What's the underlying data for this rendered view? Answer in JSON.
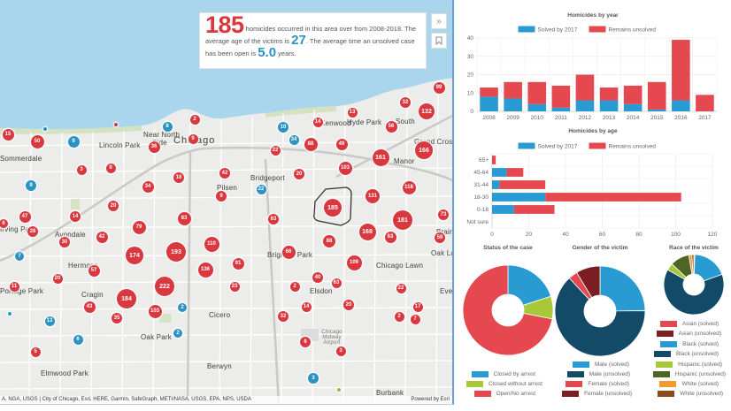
{
  "colors": {
    "red": "#e5484e",
    "blue": "#2a9ad3",
    "navy": "#124a68",
    "green": "#a8c83a",
    "darkred": "#7a1e22",
    "darkgreen": "#4f6526",
    "orange": "#f39a2c",
    "brown": "#8a4b1f"
  },
  "map": {
    "buttons": {
      "collapse_icon": "double-chevron-right-icon",
      "collapse_glyph": "»",
      "bookmark_icon": "bookmark-icon",
      "bookmark_glyph": "⌑"
    },
    "info": {
      "count": "185",
      "text1": " homicides occurred in this area over from 2008-2018. The average age of the victims is ",
      "age": "27",
      "text2": ". The average time an unsolved case has been open is ",
      "years": "5.0",
      "text3": " years."
    },
    "places": [
      {
        "name": "Lincoln Park"
      },
      {
        "name": "Near North"
      },
      {
        "name": "Side"
      },
      {
        "name": "Chicago"
      },
      {
        "name": "Avondale"
      },
      {
        "name": "Hermosa"
      },
      {
        "name": "Cragin"
      },
      {
        "name": "Cicero"
      },
      {
        "name": "Oak Park"
      },
      {
        "name": "Berwyn"
      },
      {
        "name": "Elmwood Park"
      },
      {
        "name": "Pilsen"
      },
      {
        "name": "Bridgeport"
      },
      {
        "name": "Brighton Park"
      },
      {
        "name": "Elsdon"
      },
      {
        "name": "Chicago Lawn"
      },
      {
        "name": "Oak Lawn"
      },
      {
        "name": "Burbank"
      },
      {
        "name": "Kenwood"
      },
      {
        "name": "Hyde Park"
      },
      {
        "name": "South"
      },
      {
        "name": "Grand Crossing"
      },
      {
        "name": "Manor"
      },
      {
        "name": "Brainerd"
      },
      {
        "name": "Evergreen"
      },
      {
        "name": "Sommerdale"
      },
      {
        "name": "Portage Park"
      },
      {
        "name": "Irving Park"
      },
      {
        "name": "Chicago Midway Airport"
      }
    ],
    "clusters": [
      {
        "label": "15",
        "type": "red"
      },
      {
        "label": "50",
        "type": "red"
      },
      {
        "label": "9",
        "type": "blue"
      },
      {
        "label": "3",
        "type": "red"
      },
      {
        "label": "9",
        "type": "red"
      },
      {
        "label": "36",
        "type": "red"
      },
      {
        "label": "8",
        "type": "blue"
      },
      {
        "label": "2",
        "type": "red"
      },
      {
        "label": "9",
        "type": "red"
      },
      {
        "label": "34",
        "type": "blue"
      },
      {
        "label": "9",
        "type": "blue"
      },
      {
        "label": "47",
        "type": "red"
      },
      {
        "label": "6",
        "type": "red"
      },
      {
        "label": "14",
        "type": "red"
      },
      {
        "label": "20",
        "type": "red"
      },
      {
        "label": "34",
        "type": "red"
      },
      {
        "label": "18",
        "type": "red"
      },
      {
        "label": "42",
        "type": "red"
      },
      {
        "label": "9",
        "type": "red"
      },
      {
        "label": "30",
        "type": "red"
      },
      {
        "label": "42",
        "type": "red"
      },
      {
        "label": "79",
        "type": "red"
      },
      {
        "label": "83",
        "type": "red"
      },
      {
        "label": "110",
        "type": "red"
      },
      {
        "label": "7",
        "type": "blue"
      },
      {
        "label": "174",
        "type": "red"
      },
      {
        "label": "193",
        "type": "red"
      },
      {
        "label": "136",
        "type": "red"
      },
      {
        "label": "57",
        "type": "red"
      },
      {
        "label": "20",
        "type": "red"
      },
      {
        "label": "11",
        "type": "red"
      },
      {
        "label": "222",
        "type": "red"
      },
      {
        "label": "184",
        "type": "red"
      },
      {
        "label": "103",
        "type": "red"
      },
      {
        "label": "43",
        "type": "red"
      },
      {
        "label": "35",
        "type": "red"
      },
      {
        "label": "2",
        "type": "blue"
      },
      {
        "label": "13",
        "type": "blue"
      },
      {
        "label": "6",
        "type": "blue"
      },
      {
        "label": "2",
        "type": "blue"
      },
      {
        "label": "5",
        "type": "red"
      },
      {
        "label": "28",
        "type": "red"
      },
      {
        "label": "91",
        "type": "red"
      },
      {
        "label": "23",
        "type": "red"
      },
      {
        "label": "22",
        "type": "blue"
      },
      {
        "label": "10",
        "type": "blue"
      },
      {
        "label": "22",
        "type": "red"
      },
      {
        "label": "88",
        "type": "red"
      },
      {
        "label": "49",
        "type": "red"
      },
      {
        "label": "14",
        "type": "red"
      },
      {
        "label": "13",
        "type": "red"
      },
      {
        "label": "103",
        "type": "red"
      },
      {
        "label": "20",
        "type": "red"
      },
      {
        "label": "161",
        "type": "red"
      },
      {
        "label": "56",
        "type": "red"
      },
      {
        "label": "32",
        "type": "red"
      },
      {
        "label": "132",
        "type": "red"
      },
      {
        "label": "99",
        "type": "red"
      },
      {
        "label": "166",
        "type": "red"
      },
      {
        "label": "118",
        "type": "red"
      },
      {
        "label": "185",
        "type": "red"
      },
      {
        "label": "131",
        "type": "red"
      },
      {
        "label": "63",
        "type": "red"
      },
      {
        "label": "181",
        "type": "red"
      },
      {
        "label": "168",
        "type": "red"
      },
      {
        "label": "73",
        "type": "red"
      },
      {
        "label": "59",
        "type": "red"
      },
      {
        "label": "88",
        "type": "red"
      },
      {
        "label": "66",
        "type": "red"
      },
      {
        "label": "63",
        "type": "red"
      },
      {
        "label": "109",
        "type": "red"
      },
      {
        "label": "40",
        "type": "red"
      },
      {
        "label": "2",
        "type": "red"
      },
      {
        "label": "17",
        "type": "red"
      },
      {
        "label": "22",
        "type": "red"
      },
      {
        "label": "14",
        "type": "red"
      },
      {
        "label": "20",
        "type": "red"
      },
      {
        "label": "32",
        "type": "red"
      },
      {
        "label": "2",
        "type": "red"
      },
      {
        "label": "7",
        "type": "red"
      },
      {
        "label": "6",
        "type": "red"
      },
      {
        "label": "3",
        "type": "red"
      },
      {
        "label": "3",
        "type": "blue"
      },
      {
        "label": "63",
        "type": "red"
      }
    ],
    "attribution": "A, NGA, USGS | City of Chicago, Esri, HERE, Garmin, SafeGraph, METI/NASA, USGS, EPA, NPS, USDA",
    "powered_by": "Powered by Esri"
  },
  "chart_data": [
    {
      "type": "bar",
      "stacked": true,
      "orientation": "vertical",
      "title": "Homicides by year",
      "legend_position": "top",
      "categories": [
        "2008",
        "2009",
        "2010",
        "2011",
        "2012",
        "2013",
        "2014",
        "2015",
        "2016",
        "2017"
      ],
      "series": [
        {
          "name": "Solved by 2017",
          "color": "#2a9ad3",
          "values": [
            8,
            7,
            4,
            2,
            6,
            6,
            4,
            1,
            6,
            0
          ]
        },
        {
          "name": "Remains unsolved",
          "color": "#e5484e",
          "values": [
            5,
            9,
            12,
            12,
            14,
            7,
            10,
            15,
            33,
            9
          ]
        }
      ],
      "ylim": [
        0,
        40
      ],
      "yticks": [
        "0",
        "10",
        "20",
        "30",
        "40"
      ],
      "grid": true
    },
    {
      "type": "bar",
      "stacked": true,
      "orientation": "horizontal",
      "title": "Homicides by age",
      "legend_position": "top",
      "categories": [
        "65+",
        "45-64",
        "31-44",
        "18-30",
        "0-18",
        "Not sure"
      ],
      "series": [
        {
          "name": "Solved by 2017",
          "color": "#2a9ad3",
          "values": [
            0,
            8,
            4,
            29,
            12,
            0
          ]
        },
        {
          "name": "Remains unsolved",
          "color": "#e5484e",
          "values": [
            2,
            9,
            25,
            74,
            22,
            0
          ]
        }
      ],
      "xlim": [
        0,
        120
      ],
      "xticks": [
        "0",
        "20",
        "40",
        "60",
        "80",
        "100",
        "120"
      ],
      "grid": true
    },
    {
      "type": "pie",
      "donut": true,
      "title": "Status of the case",
      "legend_position": "bottom",
      "labels": [
        "Closed by arrest",
        "Closed without arrest",
        "Open/No arrest"
      ],
      "values": [
        37,
        15,
        133
      ],
      "colors": [
        "#2a9ad3",
        "#a8c83a",
        "#e5484e"
      ]
    },
    {
      "type": "pie",
      "donut": true,
      "title": "Gender of the victim",
      "legend_position": "bottom",
      "labels": [
        "Male (solved)",
        "Male (unsolved)",
        "Female (solved)",
        "Female (unsolved)"
      ],
      "values": [
        46,
        117,
        6,
        16
      ],
      "colors": [
        "#2a9ad3",
        "#124a68",
        "#e5484e",
        "#7a1e22"
      ]
    },
    {
      "type": "pie",
      "donut": true,
      "title": "Race of the victim",
      "legend_position": "bottom",
      "labels": [
        "Asian (solved)",
        "Asian (unsolved)",
        "Black (solved)",
        "Black (unsolved)",
        "Hispanic (solved)",
        "Hispanic (unsolved)",
        "White (solved)",
        "White (unsolved)"
      ],
      "values": [
        0,
        1,
        35,
        118,
        7,
        19,
        3,
        2
      ],
      "colors": [
        "#e5484e",
        "#7a1e22",
        "#2a9ad3",
        "#124a68",
        "#a8c83a",
        "#4f6526",
        "#f39a2c",
        "#8a4b1f"
      ]
    }
  ]
}
